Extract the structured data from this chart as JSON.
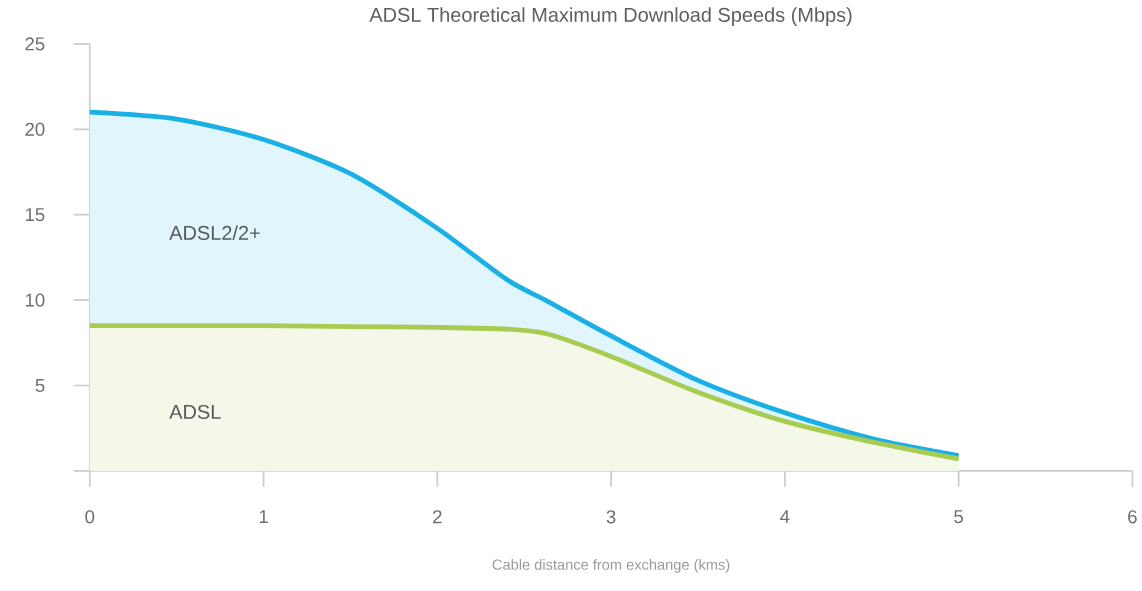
{
  "chart_data": {
    "type": "area",
    "title": "ADSL Theoretical Maximum Download Speeds (Mbps)",
    "xlabel": "Cable distance from exchange (kms)",
    "x": [
      0,
      0.5,
      1,
      1.5,
      2,
      2.4,
      2.64,
      3,
      3.5,
      4,
      4.5,
      5
    ],
    "series": [
      {
        "name": "ADSL2/2+",
        "color": "#1ab0e6",
        "values": [
          21,
          20.6,
          19.4,
          17.4,
          14.2,
          11.2,
          9.9,
          7.9,
          5.3,
          3.4,
          1.9,
          0.9
        ]
      },
      {
        "name": "ADSL",
        "color": "#a8cc52",
        "values": [
          8.5,
          8.5,
          8.5,
          8.45,
          8.4,
          8.3,
          8.0,
          6.7,
          4.6,
          2.9,
          1.7,
          0.7
        ]
      }
    ],
    "xlim": [
      0,
      6
    ],
    "xticks": [
      0,
      1,
      2,
      3,
      4,
      5,
      6
    ],
    "ylim": [
      0,
      25
    ],
    "yticks": [
      {
        "value": 0,
        "label": null
      },
      5,
      10,
      15,
      20,
      25
    ]
  }
}
